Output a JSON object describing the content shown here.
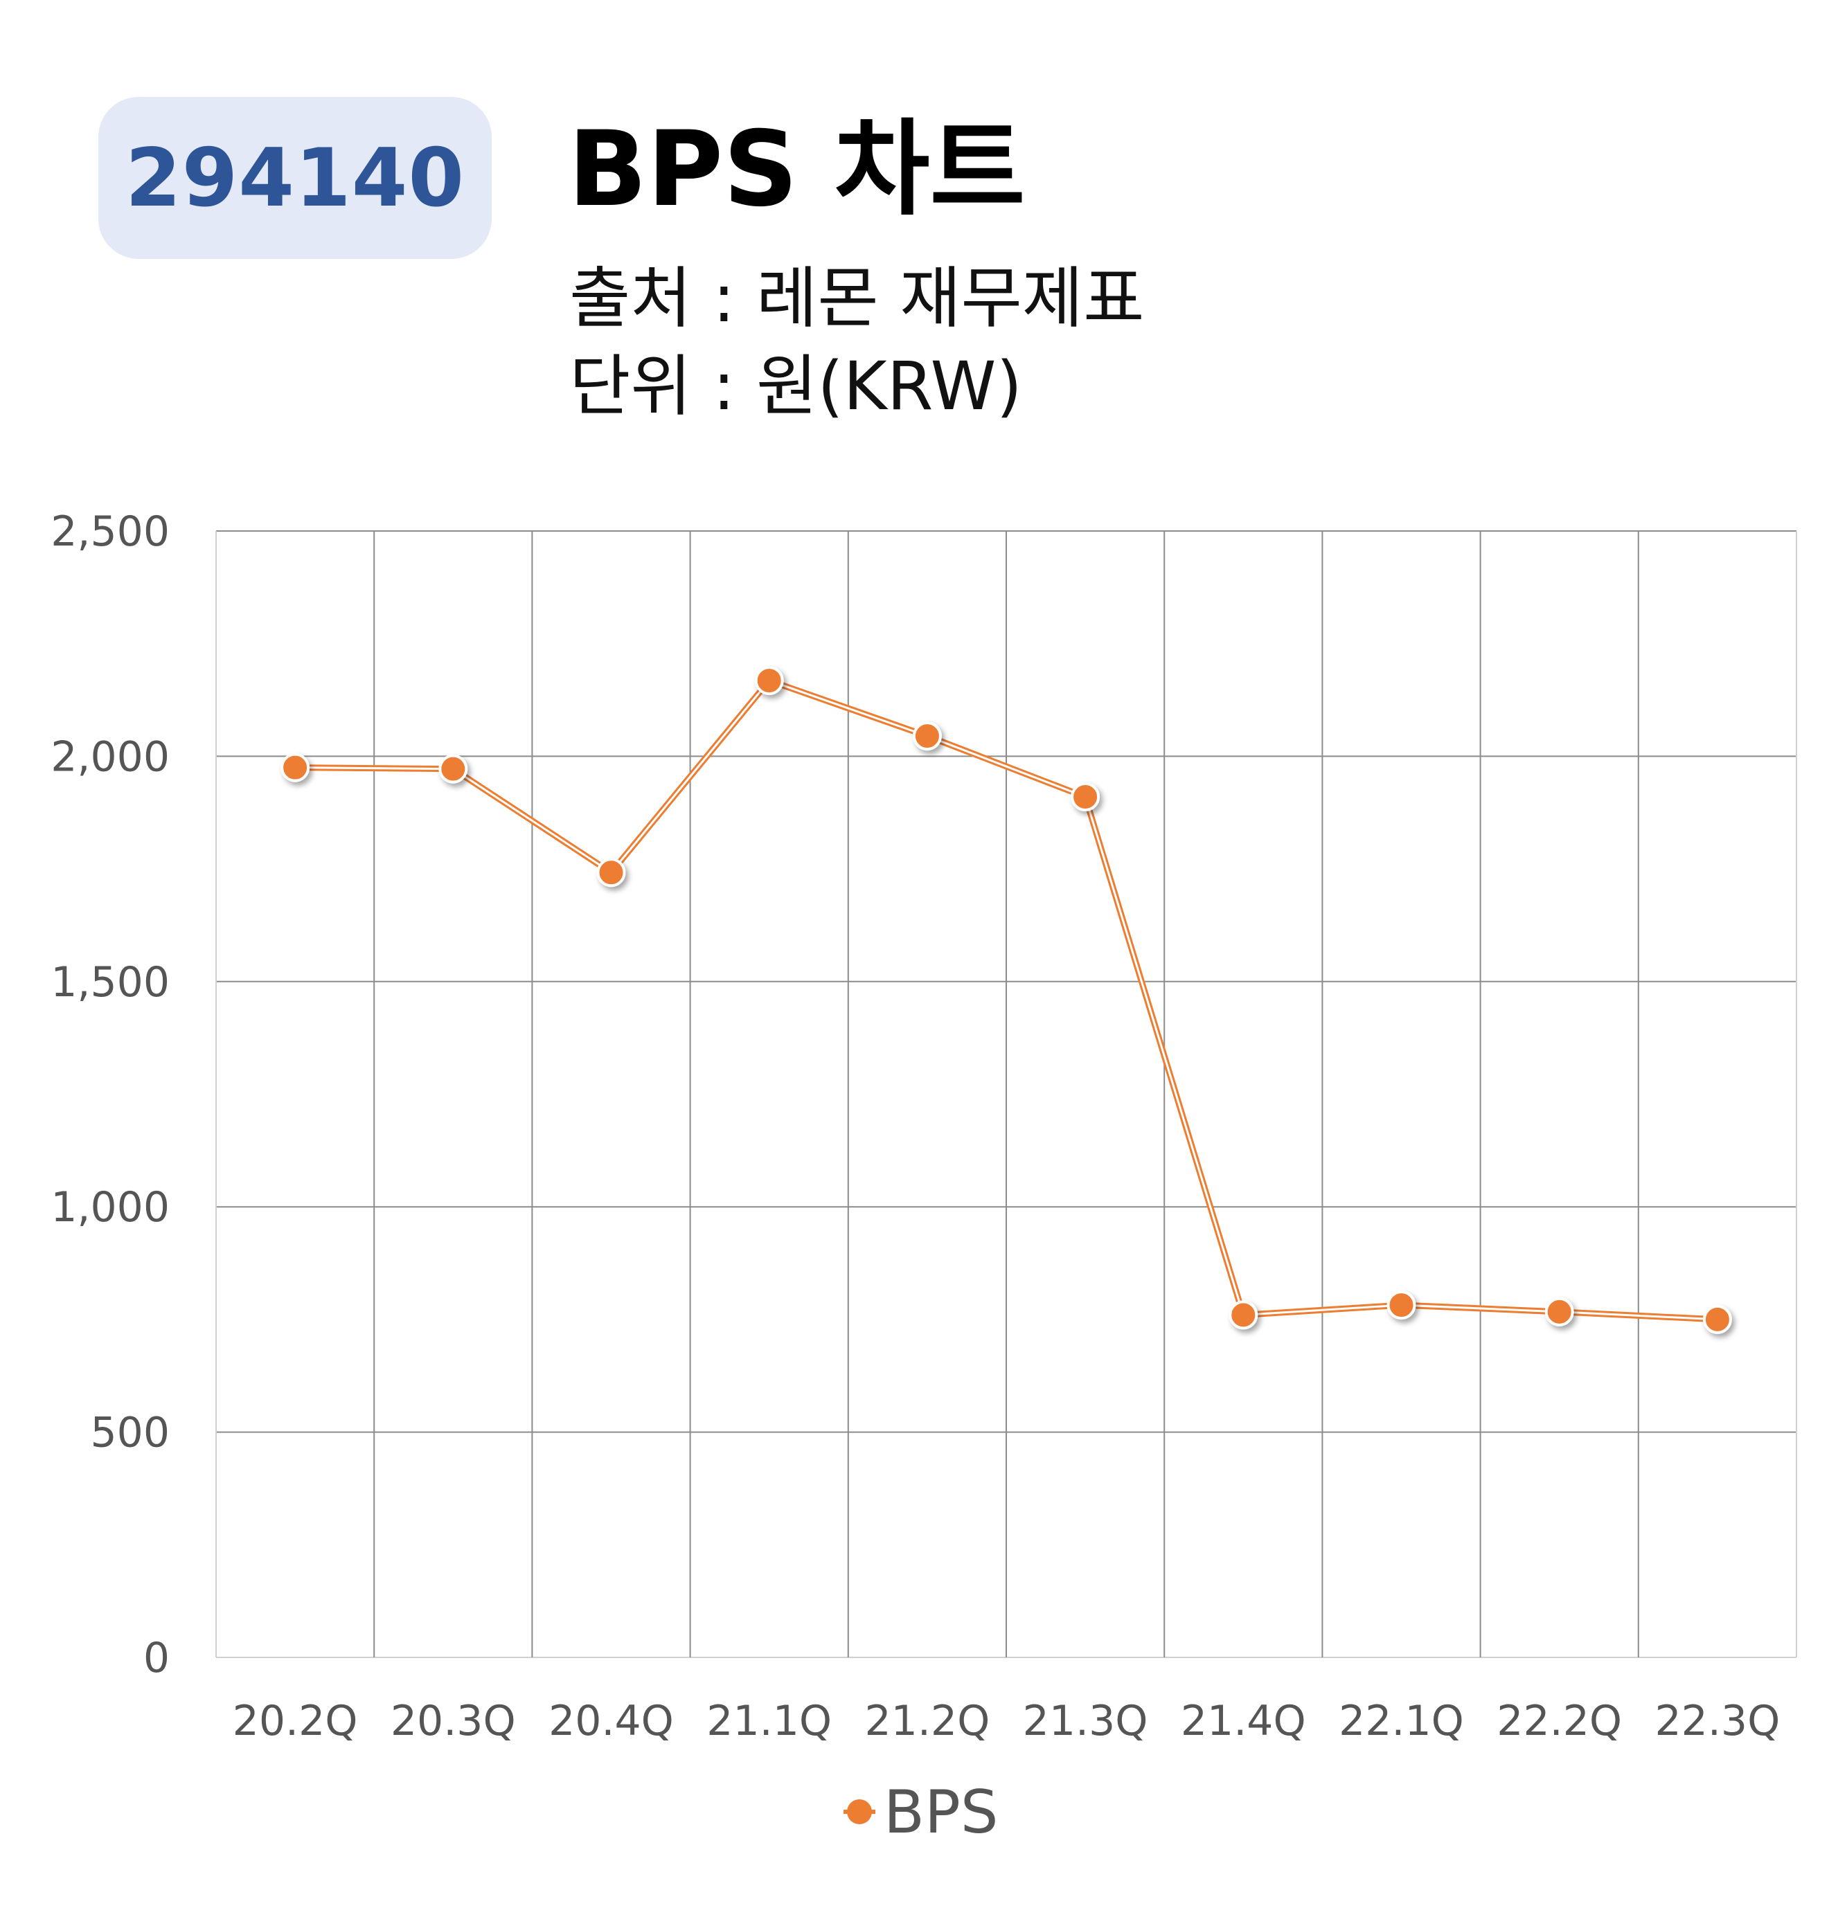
{
  "header": {
    "code": "294140",
    "title": "BPS 차트",
    "source": "출처 : 레몬 재무제표",
    "unit": "단위 : 원(KRW)"
  },
  "colors": {
    "badge_bg": "#e3e9f6",
    "badge_text": "#2e5597",
    "series": "#ed7d31",
    "grid": "#8c8c8c"
  },
  "chart_data": {
    "type": "line",
    "categories": [
      "20.2Q",
      "20.3Q",
      "20.4Q",
      "21.1Q",
      "21.2Q",
      "21.3Q",
      "21.4Q",
      "22.1Q",
      "22.2Q",
      "22.3Q"
    ],
    "series": [
      {
        "name": "BPS",
        "values": [
          1975,
          1972,
          1742,
          2168,
          2045,
          1910,
          760,
          782,
          767,
          750
        ]
      }
    ],
    "ylim": [
      0,
      2500
    ],
    "yticks": [
      0,
      500,
      1000,
      1500,
      2000,
      2500
    ],
    "ytick_labels": [
      "0",
      "500",
      "1,000",
      "1,500",
      "2,000",
      "2,500"
    ],
    "grid": true,
    "legend": "bottom-center",
    "xlabel": "",
    "ylabel": ""
  }
}
